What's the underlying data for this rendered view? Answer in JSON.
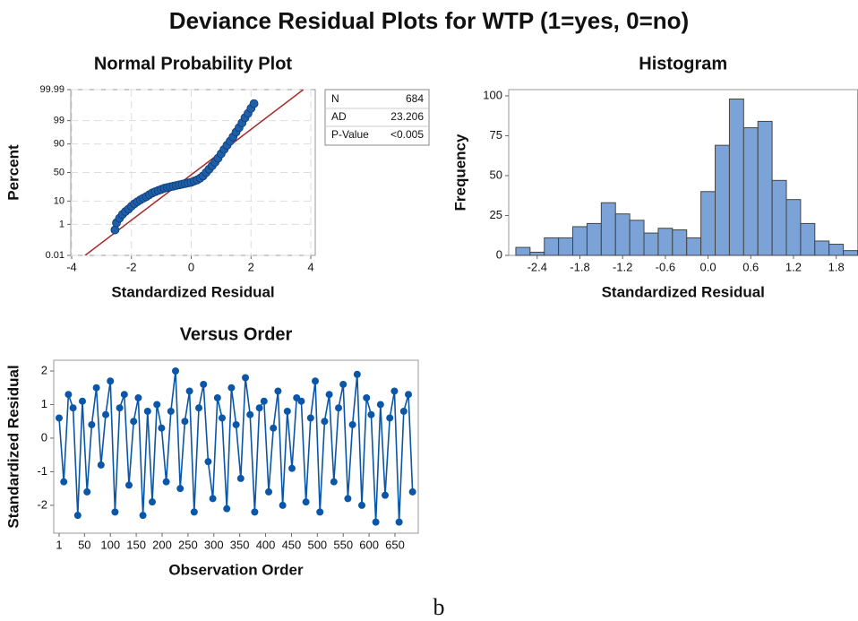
{
  "title": "Deviance Residual Plots for WTP (1=yes, 0=no)",
  "caption": "b",
  "chart_data": [
    {
      "type": "probability",
      "title": "Normal Probability Plot",
      "xlabel": "Standardized Residual",
      "ylabel": "Percent",
      "yscale": "probability",
      "grid": true,
      "xlim": [
        -4.03,
        4.15
      ],
      "xticks": [
        -4,
        -2,
        0,
        2,
        4
      ],
      "ylim": [
        0.01,
        99.99
      ],
      "yticks": [
        0.01,
        1,
        10,
        50,
        90,
        99,
        99.99
      ],
      "points": {
        "color": "#1f5fa8",
        "x": [
          -2.55,
          -2.5,
          -2.4,
          -2.3,
          -2.2,
          -2.1,
          -2.0,
          -1.9,
          -1.8,
          -1.7,
          -1.6,
          -1.5,
          -1.4,
          -1.3,
          -1.2,
          -1.1,
          -1.0,
          -0.9,
          -0.8,
          -0.7,
          -0.6,
          -0.5,
          -0.4,
          -0.3,
          -0.2,
          -0.1,
          0.0,
          0.1,
          0.2,
          0.3,
          0.4,
          0.5,
          0.6,
          0.7,
          0.8,
          0.9,
          1.0,
          1.1,
          1.2,
          1.3,
          1.4,
          1.5,
          1.6,
          1.7,
          1.8,
          1.9,
          2.0,
          2.1
        ],
        "values": [
          0.5,
          1.2,
          2,
          3,
          4,
          5,
          6.5,
          8,
          9.5,
          11,
          12.5,
          14,
          16,
          18,
          19.5,
          21,
          22.5,
          24,
          25,
          26,
          27,
          28,
          29,
          30,
          31,
          32,
          33,
          35,
          37,
          40,
          44,
          50,
          56,
          62,
          68,
          74,
          80,
          85,
          89,
          92,
          94.5,
          96.5,
          97.8,
          98.7,
          99.3,
          99.6,
          99.8,
          99.9
        ]
      },
      "fit": {
        "color": "#a52a2a",
        "x": [
          -3.55,
          3.75
        ],
        "values": [
          0.01,
          99.99
        ]
      },
      "stats": [
        {
          "label": "N",
          "value": 684
        },
        {
          "label": "AD",
          "value": 23.206
        },
        {
          "label": "P-Value",
          "value": "<0.005"
        }
      ]
    },
    {
      "type": "histogram",
      "title": "Histogram",
      "xlabel": "Standardized Residual",
      "ylabel": "Frequency",
      "color": "#7ba3d8",
      "xlim": [
        -2.8,
        2.1
      ],
      "xticks": [
        -2.4,
        -1.8,
        -1.2,
        -0.6,
        {
          "value": 0,
          "label": "0.0"
        },
        0.6,
        1.2,
        1.8
      ],
      "ylim": [
        0,
        103.9
      ],
      "yticks": [
        0,
        25,
        50,
        75,
        100
      ],
      "bins": [
        -2.7,
        -2.5,
        -2.3,
        -2.1,
        -1.9,
        -1.7,
        -1.5,
        -1.3,
        -1.1,
        -0.9,
        -0.7,
        -0.5,
        -0.3,
        -0.1,
        0.1,
        0.3,
        0.5,
        0.7,
        0.9,
        1.1,
        1.3,
        1.5,
        1.7,
        1.9,
        2.1
      ],
      "values": [
        5,
        2,
        11,
        11,
        18,
        20,
        33,
        26,
        22,
        14,
        17,
        16,
        11,
        40,
        69,
        98,
        80,
        84,
        47,
        35,
        20,
        9,
        7,
        3
      ]
    },
    {
      "type": "line",
      "title": "Versus Order",
      "xlabel": "Observation Order",
      "ylabel": "Standardized Residual",
      "color": "#0a56a8",
      "xlim": [
        -9.4,
        695
      ],
      "xticks": [
        1,
        50,
        100,
        150,
        200,
        250,
        300,
        350,
        400,
        450,
        500,
        550,
        600,
        650
      ],
      "ylim": [
        -2.83,
        2.32
      ],
      "yticks": [
        -2,
        -1,
        0,
        1,
        2
      ],
      "x": [
        1,
        10,
        19,
        28,
        37,
        46,
        55,
        64,
        73,
        82,
        91,
        100,
        109,
        118,
        127,
        136,
        145,
        154,
        163,
        172,
        181,
        190,
        199,
        208,
        217,
        226,
        235,
        244,
        253,
        262,
        271,
        280,
        289,
        298,
        307,
        316,
        325,
        334,
        343,
        352,
        361,
        370,
        379,
        388,
        397,
        406,
        415,
        424,
        433,
        442,
        451,
        460,
        469,
        478,
        487,
        496,
        505,
        514,
        523,
        532,
        541,
        550,
        559,
        568,
        577,
        586,
        595,
        604,
        613,
        622,
        631,
        640,
        649,
        658,
        667,
        676,
        684
      ],
      "values": [
        0.6,
        -1.3,
        1.3,
        0.9,
        -2.3,
        1.1,
        -1.6,
        0.4,
        1.5,
        -0.8,
        0.7,
        1.7,
        -2.2,
        0.9,
        1.3,
        -1.4,
        0.5,
        1.2,
        -2.3,
        0.8,
        -1.9,
        1.0,
        0.3,
        -1.3,
        0.8,
        2.0,
        -1.5,
        0.5,
        1.4,
        -2.2,
        0.9,
        1.6,
        -0.7,
        -1.8,
        1.2,
        0.6,
        -2.1,
        1.5,
        0.4,
        -1.2,
        1.8,
        0.7,
        -2.2,
        0.9,
        1.1,
        -1.6,
        0.3,
        1.4,
        -2.0,
        0.8,
        -0.9,
        1.2,
        1.1,
        -1.9,
        0.6,
        1.7,
        -2.2,
        0.5,
        1.3,
        -1.3,
        0.9,
        1.6,
        -1.8,
        0.4,
        1.9,
        -2.0,
        1.2,
        0.7,
        -2.5,
        1.0,
        -1.7,
        0.6,
        1.4,
        -2.5,
        0.8,
        1.3,
        -1.6
      ]
    }
  ]
}
